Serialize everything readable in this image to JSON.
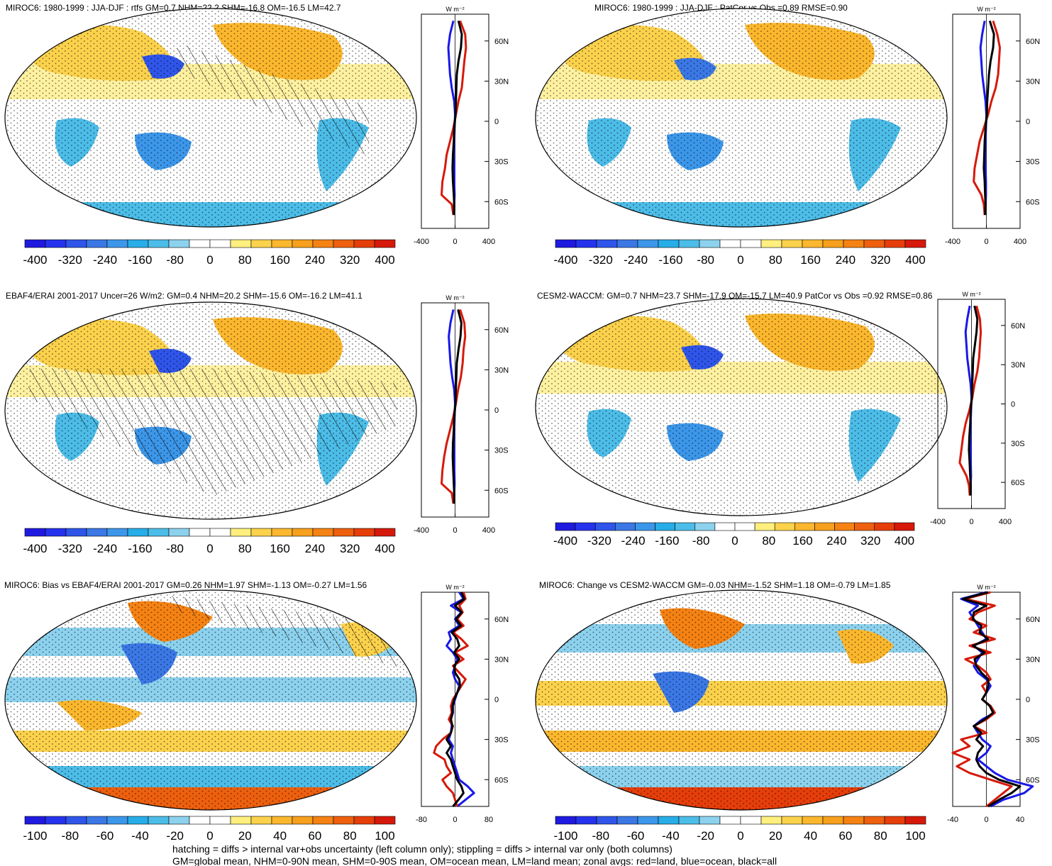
{
  "colors": {
    "bias_palette": [
      "#1f1ae0",
      "#2533ee",
      "#2f55ea",
      "#3b78e6",
      "#3c97ea",
      "#27ade8",
      "#4cbde8",
      "#8cd2ee",
      "#ffffff",
      "#ffffff",
      "#ffef7e",
      "#fcd24c",
      "#fbb72d",
      "#f7a01d",
      "#f58213",
      "#ee600e",
      "#e63e0a",
      "#d6190a"
    ],
    "land": "#d6190a",
    "ocean": "#1818e8",
    "all": "#000000"
  },
  "unit_label": "W m⁻²",
  "footer": {
    "line1": "hatching = diffs > internal var+obs uncertainty (left column only); stippling = diffs > internal var only (both columns)",
    "line2": "GM=global mean, NHM=0-90N mean, SHM=0-90S mean, OM=ocean mean, LM=land mean; zonal avgs: red=land, blue=ocean, black=all"
  },
  "chart_data": [
    {
      "type": "map",
      "title": "MIROC6: 1980-1999 : JJA-DJF : rtfs GM=0.7 NHM=22.2 SHM=-16.8 OM=-16.5 LM=42.7",
      "colorbar_labels": [
        "-400",
        "-320",
        "-240",
        "-160",
        "-80",
        "0",
        "80",
        "160",
        "240",
        "320",
        "400"
      ],
      "zonal": {
        "y_ticks": [
          "60N",
          "30N",
          "0",
          "30S",
          "60S"
        ],
        "x_ticks": [
          "-400",
          "0",
          "400"
        ],
        "lat": [
          75,
          65,
          55,
          45,
          35,
          25,
          15,
          5,
          -5,
          -15,
          -25,
          -35,
          -45,
          -55,
          -62,
          -70
        ],
        "land": [
          60,
          120,
          130,
          110,
          95,
          80,
          40,
          10,
          -20,
          -60,
          -100,
          -120,
          -150,
          -160,
          -40,
          -20
        ],
        "ocean": [
          -20,
          -60,
          -80,
          -70,
          -60,
          -40,
          -10,
          0,
          -5,
          -10,
          -15,
          -10,
          -10,
          -5,
          -10,
          -20
        ],
        "all": [
          40,
          80,
          70,
          40,
          20,
          15,
          10,
          5,
          -10,
          -15,
          -25,
          -30,
          -25,
          -15,
          -10,
          -15
        ]
      }
    },
    {
      "type": "map",
      "title": "MIROC6: 1980-1999 : JJA-DJF : PatCor vs Obs =0.89 RMSE=0.90",
      "colorbar_labels": [
        "-400",
        "-320",
        "-240",
        "-160",
        "-80",
        "0",
        "80",
        "160",
        "240",
        "320",
        "400"
      ],
      "zonal": {
        "y_ticks": [
          "60N",
          "30N",
          "0",
          "30S",
          "60S"
        ],
        "x_ticks": [
          "-400",
          "0",
          "400"
        ],
        "lat": [
          75,
          65,
          55,
          45,
          35,
          25,
          15,
          5,
          -5,
          -15,
          -25,
          -35,
          -45,
          -55,
          -62,
          -70
        ],
        "land": [
          80,
          130,
          160,
          150,
          140,
          110,
          60,
          20,
          -30,
          -80,
          -110,
          -140,
          -150,
          -60,
          -30,
          -20
        ],
        "ocean": [
          -20,
          -50,
          -70,
          -60,
          -50,
          -30,
          -10,
          0,
          -5,
          -10,
          -15,
          -10,
          -5,
          -5,
          -10,
          -20
        ],
        "all": [
          40,
          90,
          80,
          50,
          30,
          20,
          10,
          5,
          -10,
          -20,
          -25,
          -30,
          -20,
          -15,
          -10,
          -15
        ]
      }
    },
    {
      "type": "map",
      "title": "EBAF4/ERAI 2001-2017 Uncer=26 W/m2: GM=0.4 NHM=20.2 SHM=-15.6 OM=-16.2 LM=41.1",
      "colorbar_labels": [
        "-400",
        "-320",
        "-240",
        "-160",
        "-80",
        "0",
        "80",
        "160",
        "240",
        "320",
        "400"
      ],
      "zonal": {
        "y_ticks": [
          "60N",
          "30N",
          "0",
          "30S",
          "60S"
        ],
        "x_ticks": [
          "-400",
          "0",
          "400"
        ],
        "lat": [
          75,
          65,
          55,
          45,
          35,
          25,
          15,
          5,
          -5,
          -15,
          -25,
          -35,
          -45,
          -55,
          -62,
          -70
        ],
        "land": [
          60,
          110,
          120,
          100,
          90,
          70,
          35,
          10,
          -20,
          -60,
          -100,
          -130,
          -150,
          -160,
          -40,
          -20
        ],
        "ocean": [
          -20,
          -55,
          -75,
          -65,
          -55,
          -35,
          -10,
          0,
          -5,
          -10,
          -15,
          -10,
          -8,
          -5,
          -10,
          -20
        ],
        "all": [
          35,
          75,
          65,
          40,
          20,
          15,
          8,
          5,
          -10,
          -15,
          -25,
          -28,
          -22,
          -15,
          -10,
          -12
        ]
      }
    },
    {
      "type": "map",
      "title": "CESM2-WACCM: GM=0.7 NHM=23.7 SHM=-17.9 OM=-15.7 LM=40.9 PatCor vs Obs =0.92 RMSE=0.86",
      "colorbar_labels": [
        "-400",
        "-320",
        "-240",
        "-160",
        "-80",
        "0",
        "80",
        "160",
        "240",
        "320",
        "400"
      ],
      "zonal": {
        "y_ticks": [
          "60N",
          "30N",
          "0",
          "30S",
          "60S"
        ],
        "x_ticks": [
          "-400",
          "0",
          "400"
        ],
        "lat": [
          75,
          65,
          55,
          45,
          35,
          25,
          15,
          5,
          -5,
          -15,
          -25,
          -35,
          -45,
          -55,
          -62,
          -70
        ],
        "land": [
          60,
          100,
          110,
          100,
          90,
          70,
          35,
          10,
          -25,
          -70,
          -100,
          -120,
          -140,
          -60,
          -30,
          -20
        ],
        "ocean": [
          -20,
          -50,
          -70,
          -60,
          -50,
          -30,
          -10,
          0,
          -5,
          -10,
          -15,
          -10,
          -8,
          -5,
          -10,
          -20
        ],
        "all": [
          35,
          70,
          60,
          40,
          20,
          15,
          8,
          5,
          -10,
          -15,
          -25,
          -30,
          -22,
          -15,
          -10,
          -12
        ]
      }
    },
    {
      "type": "map",
      "title": "MIROC6: Bias vs EBAF4/ERAI 2001-2017 GM=0.26 NHM=1.97 SHM=-1.13 OM=-0.27 LM=1.56",
      "colorbar_labels": [
        "-100",
        "-80",
        "-60",
        "-40",
        "-20",
        "0",
        "20",
        "40",
        "60",
        "80",
        "100"
      ],
      "zonal": {
        "y_ticks": [
          "60N",
          "30N",
          "0",
          "30S",
          "60S"
        ],
        "x_ticks": [
          "-80",
          "0",
          "80"
        ],
        "lat": [
          80,
          75,
          70,
          65,
          60,
          55,
          50,
          45,
          40,
          35,
          30,
          25,
          20,
          15,
          10,
          5,
          0,
          -5,
          -10,
          -15,
          -20,
          -25,
          -30,
          -35,
          -40,
          -45,
          -50,
          -55,
          -60,
          -65,
          -70,
          -75,
          -80
        ],
        "land": [
          20,
          25,
          10,
          18,
          5,
          20,
          -5,
          15,
          30,
          0,
          20,
          -5,
          10,
          25,
          15,
          5,
          -5,
          -10,
          -8,
          -15,
          -5,
          -10,
          -30,
          -45,
          -50,
          -25,
          -20,
          -10,
          -30,
          -20,
          -5,
          0,
          5
        ],
        "ocean": [
          10,
          20,
          -10,
          15,
          0,
          10,
          -15,
          -10,
          -20,
          -5,
          5,
          0,
          -5,
          0,
          10,
          5,
          0,
          -5,
          -5,
          -10,
          -8,
          -10,
          -15,
          -5,
          -10,
          -5,
          0,
          5,
          10,
          30,
          45,
          25,
          5
        ],
        "all": [
          15,
          22,
          0,
          16,
          2,
          14,
          -8,
          5,
          10,
          -2,
          10,
          -2,
          0,
          10,
          12,
          5,
          -2,
          -6,
          -6,
          -10,
          -6,
          -10,
          -20,
          -10,
          -20,
          -10,
          -5,
          0,
          5,
          15,
          20,
          8,
          -5
        ]
      }
    },
    {
      "type": "map",
      "title": "MIROC6: Change vs CESM2-WACCM GM=-0.03 NHM=-1.52 SHM=1.18 OM=-0.79 LM=1.85",
      "colorbar_labels": [
        "-100",
        "-80",
        "-60",
        "-40",
        "-20",
        "0",
        "20",
        "40",
        "60",
        "80",
        "100"
      ],
      "zonal": {
        "y_ticks": [
          "60N",
          "30N",
          "0",
          "30S",
          "60S"
        ],
        "x_ticks": [
          "-40",
          "0",
          "40"
        ],
        "lat": [
          80,
          75,
          70,
          65,
          60,
          55,
          50,
          45,
          40,
          35,
          30,
          25,
          20,
          15,
          10,
          5,
          0,
          -5,
          -10,
          -15,
          -20,
          -25,
          -30,
          -35,
          -40,
          -45,
          -50,
          -55,
          -60,
          -65,
          -70,
          -75,
          -80
        ],
        "land": [
          5,
          -25,
          10,
          -10,
          -20,
          0,
          -15,
          10,
          -20,
          5,
          -25,
          -10,
          0,
          5,
          -5,
          0,
          -5,
          5,
          10,
          0,
          -15,
          0,
          -30,
          -20,
          -40,
          -20,
          -35,
          -20,
          5,
          30,
          20,
          10,
          0
        ],
        "ocean": [
          0,
          -30,
          -10,
          -20,
          -15,
          -10,
          -5,
          0,
          -15,
          -5,
          -10,
          -15,
          -10,
          0,
          5,
          0,
          -5,
          5,
          10,
          -5,
          -15,
          -10,
          -5,
          5,
          0,
          -10,
          0,
          10,
          25,
          55,
          45,
          20,
          5
        ],
        "all": [
          2,
          -28,
          0,
          -15,
          -16,
          -6,
          -8,
          2,
          -16,
          -2,
          -14,
          -12,
          -6,
          2,
          2,
          0,
          -5,
          4,
          8,
          -2,
          -15,
          -6,
          -12,
          -4,
          -10,
          -12,
          -8,
          0,
          15,
          40,
          30,
          15,
          2
        ]
      }
    }
  ]
}
